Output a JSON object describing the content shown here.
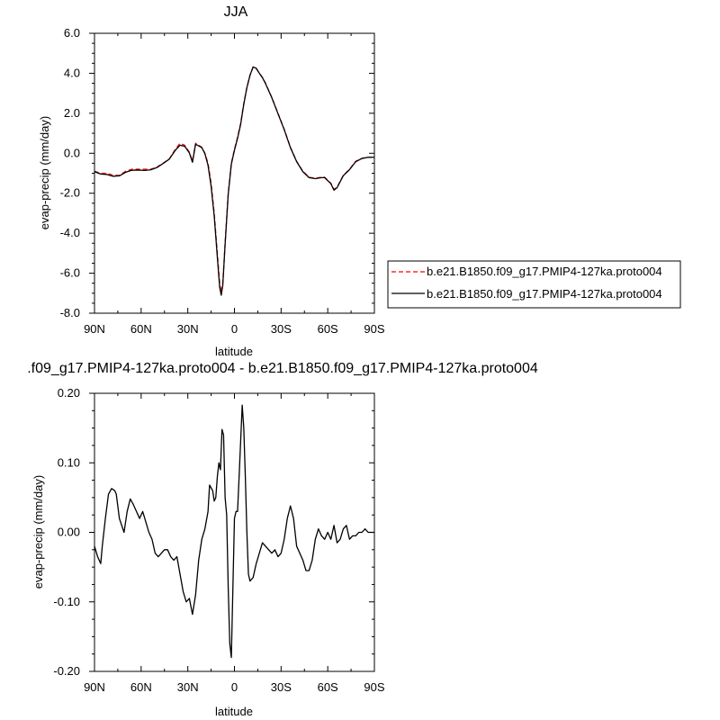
{
  "chart_data": [
    {
      "type": "line",
      "title": "JJA",
      "xlabel": "latitude",
      "ylabel": "evap-precip (mm/day)",
      "x_tick_labels": [
        "90N",
        "60N",
        "30N",
        "0",
        "30S",
        "60S",
        "90S"
      ],
      "x_tick_values": [
        90,
        60,
        30,
        0,
        -30,
        -60,
        -90
      ],
      "xlim": [
        90,
        -90
      ],
      "ylim": [
        -8,
        6
      ],
      "y_tick_values": [
        6,
        4,
        2,
        0,
        -2,
        -4,
        -6,
        -8
      ],
      "y_tick_labels": [
        "6.0",
        "4.0",
        "2.0",
        "0.0",
        "-2.0",
        "-4.0",
        "-6.0",
        "-8.0"
      ],
      "legend_position": "right",
      "grid": false,
      "series": [
        {
          "name": "b.e21.B1850.f09_g17.PMIP4-127ka.proto004",
          "color": "#ff0000",
          "dash": "dashed",
          "x": [
            90,
            86,
            82,
            78,
            74,
            70,
            66,
            62,
            58,
            54,
            50,
            46,
            42,
            38,
            35,
            32,
            29,
            27,
            25,
            23,
            21,
            19,
            17,
            15,
            13,
            11,
            9.5,
            8.5,
            7.5,
            6,
            4,
            2,
            0,
            -2,
            -4,
            -6,
            -8,
            -10,
            -12,
            -14,
            -16,
            -18,
            -20,
            -24,
            -28,
            -32,
            -36,
            -40,
            -44,
            -48,
            -52,
            -56,
            -58,
            -62,
            -64,
            -66,
            -68,
            -70,
            -74,
            -78,
            -82,
            -86,
            -90
          ],
          "y": [
            -0.9,
            -1.0,
            -1.0,
            -1.1,
            -1.1,
            -0.9,
            -0.8,
            -0.8,
            -0.8,
            -0.8,
            -0.7,
            -0.5,
            -0.3,
            0.2,
            0.5,
            0.4,
            0.05,
            -0.4,
            0.5,
            0.4,
            0.3,
            0.0,
            -0.5,
            -1.5,
            -3.0,
            -5.0,
            -6.5,
            -6.95,
            -6.5,
            -4.5,
            -2.0,
            -0.5,
            0.2,
            0.8,
            1.5,
            2.5,
            3.3,
            3.9,
            4.3,
            4.25,
            4.0,
            3.8,
            3.5,
            2.8,
            2.0,
            1.2,
            0.3,
            -0.4,
            -0.9,
            -1.2,
            -1.25,
            -1.2,
            -1.2,
            -1.5,
            -1.8,
            -1.7,
            -1.4,
            -1.1,
            -0.8,
            -0.4,
            -0.25,
            -0.2,
            -0.2
          ]
        },
        {
          "name": "b.e21.B1850.f09_g17.PMIP4-127ka.proto004",
          "color": "#000000",
          "dash": "solid",
          "x": [
            90,
            86,
            82,
            78,
            74,
            70,
            66,
            62,
            58,
            54,
            50,
            46,
            42,
            38,
            35,
            32,
            29,
            27,
            25,
            23,
            21,
            19,
            17,
            15,
            13,
            11,
            9.5,
            8.5,
            7.5,
            6,
            4,
            2,
            0,
            -2,
            -4,
            -6,
            -8,
            -10,
            -12,
            -14,
            -16,
            -18,
            -20,
            -24,
            -28,
            -32,
            -36,
            -40,
            -44,
            -48,
            -52,
            -56,
            -58,
            -62,
            -64,
            -66,
            -68,
            -70,
            -74,
            -78,
            -82,
            -86,
            -90
          ],
          "y": [
            -0.92,
            -1.04,
            -1.06,
            -1.15,
            -1.13,
            -0.95,
            -0.85,
            -0.84,
            -0.86,
            -0.83,
            -0.72,
            -0.52,
            -0.3,
            0.15,
            0.4,
            0.35,
            0.02,
            -0.45,
            0.45,
            0.37,
            0.28,
            -0.02,
            -0.6,
            -1.65,
            -3.15,
            -5.2,
            -6.7,
            -7.1,
            -6.6,
            -4.55,
            -2.05,
            -0.55,
            0.15,
            0.75,
            1.45,
            2.45,
            3.28,
            3.9,
            4.32,
            4.25,
            4.0,
            3.78,
            3.48,
            2.78,
            1.98,
            1.18,
            0.28,
            -0.42,
            -0.92,
            -1.22,
            -1.27,
            -1.22,
            -1.22,
            -1.52,
            -1.85,
            -1.72,
            -1.42,
            -1.12,
            -0.82,
            -0.42,
            -0.26,
            -0.2,
            -0.2
          ]
        }
      ]
    },
    {
      "type": "line",
      "title": ".f09_g17.PMIP4-127ka.proto004 - b.e21.B1850.f09_g17.PMIP4-127ka.proto004",
      "xlabel": "latitude",
      "ylabel": "evap-precip (mm/day)",
      "x_tick_labels": [
        "90N",
        "60N",
        "30N",
        "0",
        "30S",
        "60S",
        "90S"
      ],
      "x_tick_values": [
        90,
        60,
        30,
        0,
        -30,
        -60,
        -90
      ],
      "xlim": [
        90,
        -90
      ],
      "ylim": [
        -0.2,
        0.2
      ],
      "y_tick_values": [
        0.2,
        0.1,
        0.0,
        -0.1,
        -0.2
      ],
      "y_tick_labels": [
        "0.20",
        "0.10",
        "0.00",
        "-0.10",
        "-0.20"
      ],
      "grid": false,
      "series": [
        {
          "color": "#000000",
          "dash": "solid",
          "x": [
            90,
            88,
            86,
            85,
            83,
            81,
            79,
            77,
            76,
            74,
            71,
            69,
            67,
            65,
            63,
            61,
            59,
            57,
            55,
            53,
            51,
            49,
            47,
            45,
            43,
            41,
            39,
            37,
            35,
            33,
            31,
            29,
            27,
            25,
            23,
            21,
            19,
            17,
            16,
            14,
            13,
            12,
            11,
            10,
            9,
            8,
            7,
            6,
            5,
            4,
            3,
            2,
            1,
            0,
            -1,
            -2,
            -3,
            -5,
            -6,
            -7,
            -8,
            -9,
            -10,
            -12,
            -14,
            -16,
            -18,
            -20,
            -22,
            -24,
            -26,
            -28,
            -30,
            -32,
            -34,
            -36,
            -38,
            -40,
            -42,
            -44,
            -46,
            -48,
            -50,
            -52,
            -54,
            -56,
            -58,
            -60,
            -62,
            -64,
            -66,
            -68,
            -70,
            -72,
            -74,
            -76,
            -78,
            -80,
            -82,
            -84,
            -86,
            -88,
            -90
          ],
          "y": [
            -0.02,
            -0.035,
            -0.045,
            -0.02,
            0.02,
            0.055,
            0.063,
            0.06,
            0.055,
            0.02,
            0.0,
            0.03,
            0.048,
            0.04,
            0.03,
            0.02,
            0.03,
            0.015,
            0.0,
            -0.01,
            -0.03,
            -0.035,
            -0.03,
            -0.025,
            -0.025,
            -0.035,
            -0.04,
            -0.035,
            -0.06,
            -0.085,
            -0.1,
            -0.095,
            -0.118,
            -0.09,
            -0.04,
            -0.01,
            0.005,
            0.03,
            0.068,
            0.06,
            0.045,
            0.05,
            0.08,
            0.1,
            0.09,
            0.148,
            0.14,
            0.05,
            0.025,
            -0.08,
            -0.16,
            -0.18,
            -0.08,
            0.02,
            0.03,
            0.03,
            0.08,
            0.183,
            0.15,
            0.08,
            0.0,
            -0.06,
            -0.07,
            -0.065,
            -0.045,
            -0.03,
            -0.015,
            -0.02,
            -0.025,
            -0.03,
            -0.025,
            -0.035,
            -0.03,
            -0.01,
            0.02,
            0.038,
            0.02,
            -0.02,
            -0.03,
            -0.04,
            -0.055,
            -0.055,
            -0.04,
            -0.01,
            0.005,
            -0.005,
            -0.01,
            0.0,
            -0.01,
            0.01,
            -0.015,
            -0.01,
            0.005,
            0.01,
            -0.01,
            -0.005,
            -0.005,
            0.0,
            0.0,
            0.005,
            0.0,
            0.0,
            0.0
          ]
        }
      ]
    }
  ]
}
